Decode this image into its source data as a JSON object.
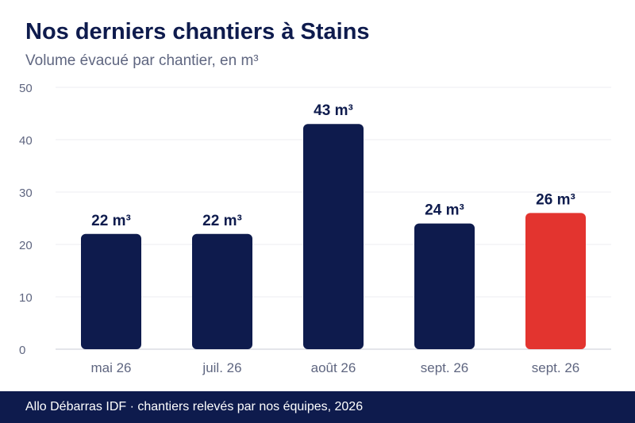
{
  "header": {
    "title": "Nos derniers chantiers à Stains",
    "subtitle": "Volume évacué par chantier, en m³"
  },
  "footer": {
    "text": "Allo Débarras IDF · chantiers relevés par nos équipes, 2026"
  },
  "colors": {
    "primary": "#0e1b4d",
    "highlight": "#e3342f",
    "axis_text": "#5f6680",
    "grid": "#ececf2"
  },
  "chart_data": {
    "type": "bar",
    "title": "Nos derniers chantiers à Stains",
    "subtitle": "Volume évacué par chantier, en m³",
    "xlabel": "",
    "ylabel": "",
    "categories": [
      "mai 26",
      "juil. 26",
      "août 26",
      "sept. 26",
      "sept. 26"
    ],
    "values": [
      22,
      22,
      43,
      24,
      26
    ],
    "data_labels": [
      "22 m³",
      "22 m³",
      "43 m³",
      "24 m³",
      "26 m³"
    ],
    "highlighted_index": 4,
    "ylim": [
      0,
      50
    ],
    "yticks": [
      0,
      10,
      20,
      30,
      40,
      50
    ],
    "grid": true,
    "legend": "none"
  }
}
